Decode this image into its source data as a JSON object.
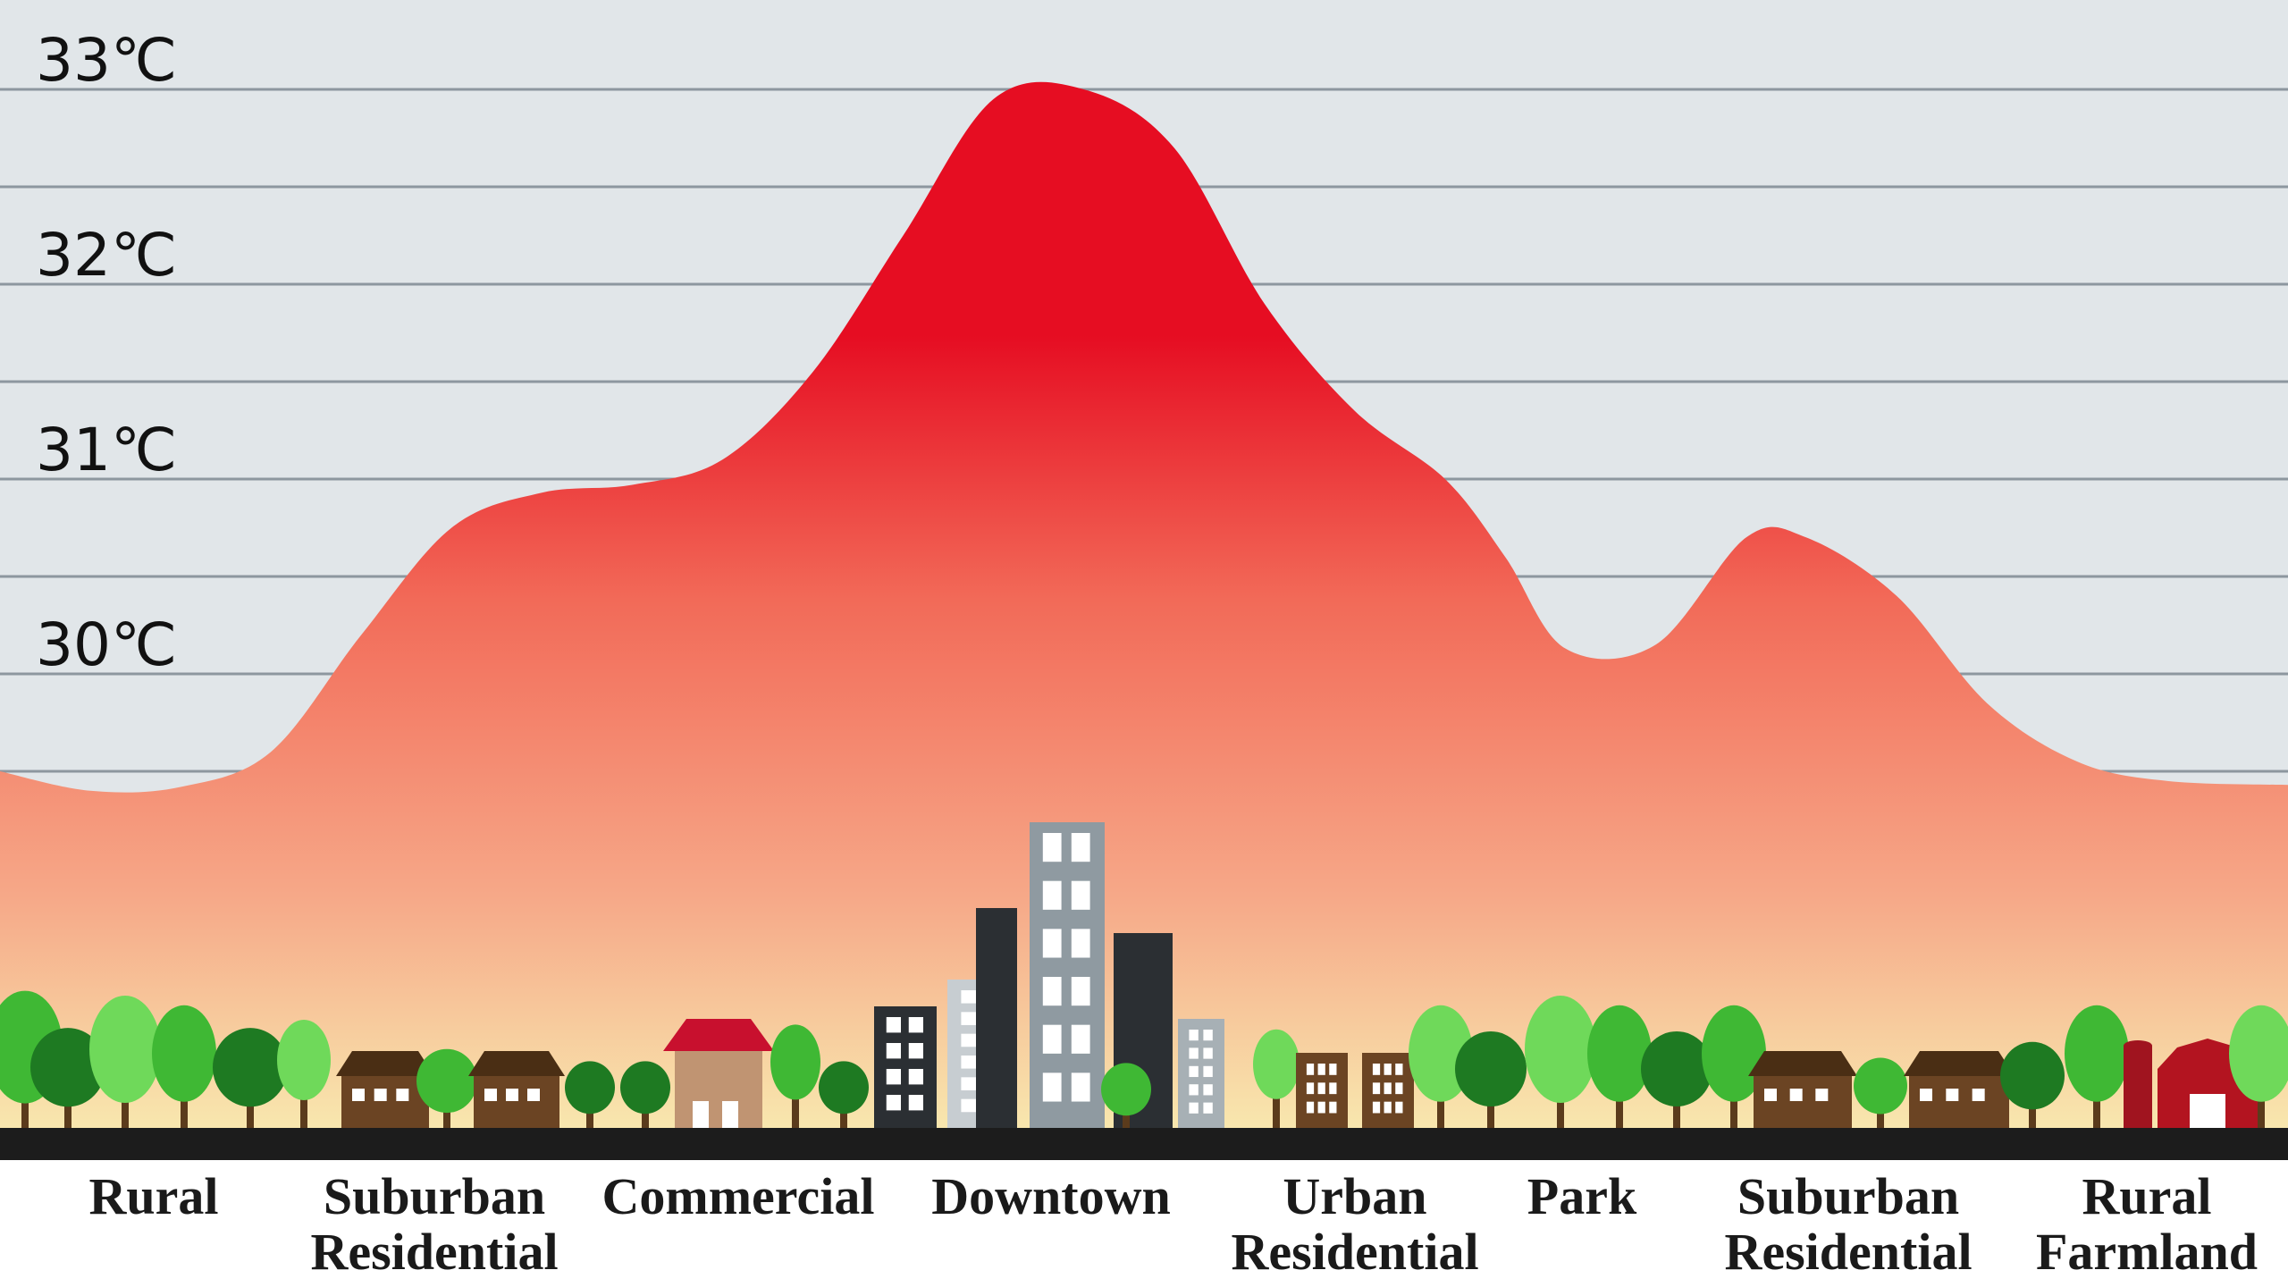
{
  "chart_data": {
    "type": "area",
    "title": "",
    "xlabel": "",
    "ylabel": "",
    "ylim": [
      29.5,
      33.4
    ],
    "y_ticks": [
      {
        "value": 33,
        "label": "33℃"
      },
      {
        "value": 32,
        "label": "32℃"
      },
      {
        "value": 31,
        "label": "31℃"
      },
      {
        "value": 30,
        "label": "30℃"
      }
    ],
    "grid": true,
    "categories": [
      [
        "Rural"
      ],
      [
        "Suburban",
        "Residential"
      ],
      [
        "Commercial"
      ],
      [
        "Downtown"
      ],
      [
        "Urban",
        "Residential"
      ],
      [
        "Park"
      ],
      [
        "Suburban",
        "Residential"
      ],
      [
        "Rural",
        "Farmland"
      ]
    ],
    "series": [
      {
        "x": [
          0,
          0.3,
          0.6,
          0.9,
          1.2,
          1.5,
          1.8,
          2.1,
          2.4,
          2.7,
          3.0,
          3.3,
          3.6,
          3.9,
          4.2,
          4.5,
          4.8,
          5.0,
          5.2,
          5.5,
          5.8,
          6.0,
          6.3,
          6.6,
          6.9,
          7.2,
          7.6
        ],
        "values": [
          29.5,
          29.4,
          29.42,
          29.6,
          30.2,
          30.75,
          30.93,
          30.97,
          31.1,
          31.55,
          32.25,
          32.95,
          33.0,
          32.7,
          31.9,
          31.35,
          31.0,
          30.6,
          30.13,
          30.15,
          30.7,
          30.7,
          30.4,
          29.85,
          29.55,
          29.45,
          29.43
        ]
      }
    ],
    "colors": {
      "background": "#e1e6e9",
      "gridline": "#8d979f",
      "area_top": "#e60d22",
      "area_mid": "#f26a58",
      "area_low": "#f6a888",
      "area_bottom": "#f8e7ae",
      "ground": "#1c1c1c"
    }
  }
}
